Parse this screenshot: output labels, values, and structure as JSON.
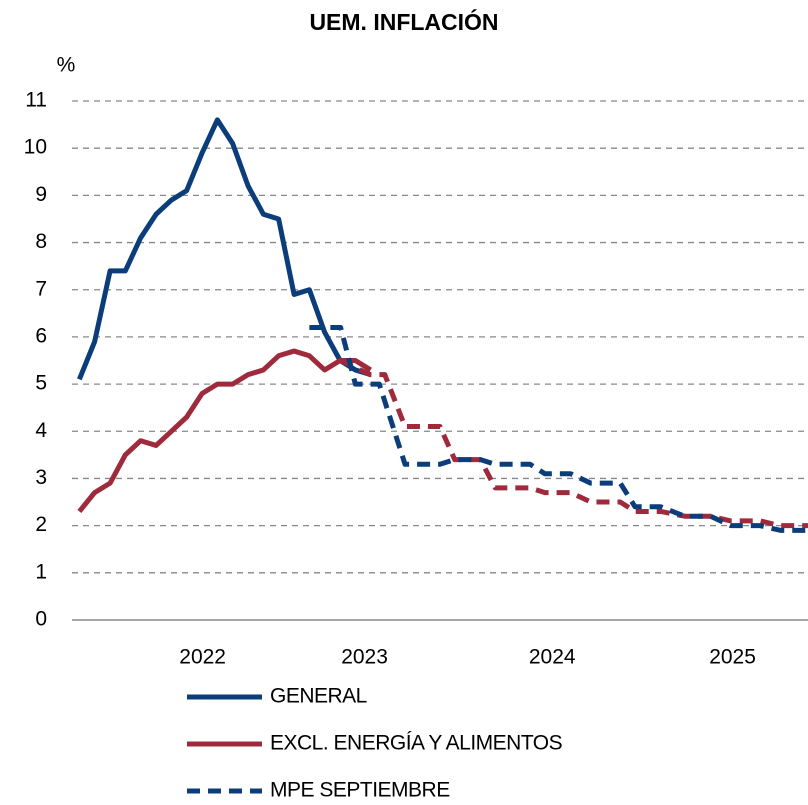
{
  "chart_data": {
    "type": "line",
    "title": "UEM. INFLACIÓN",
    "y_label": "%",
    "xlim": [
      2021.96,
      2025.96
    ],
    "ylim": [
      0,
      11
    ],
    "xticks": [
      {
        "value": 2022.67,
        "label": "2022"
      },
      {
        "value": 2023.55,
        "label": "2023"
      },
      {
        "value": 2024.57,
        "label": "2024"
      },
      {
        "value": 2025.55,
        "label": "2025"
      }
    ],
    "yticks": [
      0,
      1,
      2,
      3,
      4,
      5,
      6,
      7,
      8,
      9,
      10,
      11
    ],
    "grid": true,
    "legend": "bottom",
    "series": [
      {
        "name": "GENERAL",
        "color": "#0b3d7a",
        "dashed": false,
        "x": [
          2022,
          2022.083,
          2022.167,
          2022.25,
          2022.333,
          2022.417,
          2022.5,
          2022.583,
          2022.667,
          2022.75,
          2022.833,
          2022.917,
          2023,
          2023.083,
          2023.167,
          2023.25,
          2023.333,
          2023.417,
          2023.5,
          2023.583
        ],
        "values": [
          5.1,
          5.9,
          7.4,
          7.4,
          8.1,
          8.6,
          8.9,
          9.1,
          9.9,
          10.6,
          10.1,
          9.2,
          8.6,
          8.5,
          6.9,
          7.0,
          6.1,
          5.5,
          5.3,
          5.2
        ]
      },
      {
        "name": "EXCL. ENERGÍA Y ALIMENTOS",
        "color": "#9e2a3c",
        "dashed": false,
        "x": [
          2022,
          2022.083,
          2022.167,
          2022.25,
          2022.333,
          2022.417,
          2022.5,
          2022.583,
          2022.667,
          2022.75,
          2022.833,
          2022.917,
          2023,
          2023.083,
          2023.167,
          2023.25,
          2023.333,
          2023.417,
          2023.5,
          2023.583
        ],
        "values": [
          2.3,
          2.7,
          2.9,
          3.5,
          3.8,
          3.7,
          4.0,
          4.3,
          4.8,
          5.0,
          5.0,
          5.2,
          5.3,
          5.6,
          5.7,
          5.6,
          5.3,
          5.5,
          5.5,
          5.3
        ]
      },
      {
        "color": "#9e2a3c",
        "dashed": true,
        "x": [
          2023.42,
          2023.58,
          2023.66,
          2023.77,
          2023.96,
          2024.04,
          2024.18,
          2024.26,
          2024.45,
          2024.53,
          2024.67,
          2024.78,
          2024.94,
          2025.02,
          2025.16,
          2025.29,
          2025.43,
          2025.54,
          2025.7,
          2025.81,
          2025.96
        ],
        "values": [
          5.5,
          5.2,
          5.2,
          4.1,
          4.1,
          3.4,
          3.4,
          2.8,
          2.8,
          2.7,
          2.7,
          2.5,
          2.5,
          2.3,
          2.3,
          2.2,
          2.2,
          2.1,
          2.1,
          2.0,
          2.0
        ]
      },
      {
        "name": "MPE SEPTIEMBRE",
        "color": "#0b3d7a",
        "dashed": true,
        "x": [
          2023.25,
          2023.42,
          2023.5,
          2023.63,
          2023.77,
          2023.96,
          2024.04,
          2024.18,
          2024.26,
          2024.45,
          2024.53,
          2024.67,
          2024.78,
          2024.94,
          2025.02,
          2025.16,
          2025.29,
          2025.43,
          2025.54,
          2025.7,
          2025.81,
          2025.96
        ],
        "values": [
          6.2,
          6.2,
          5.0,
          5.0,
          3.3,
          3.3,
          3.4,
          3.4,
          3.3,
          3.3,
          3.1,
          3.1,
          2.9,
          2.9,
          2.4,
          2.4,
          2.2,
          2.2,
          2.0,
          2.0,
          1.9,
          1.9
        ]
      }
    ]
  }
}
